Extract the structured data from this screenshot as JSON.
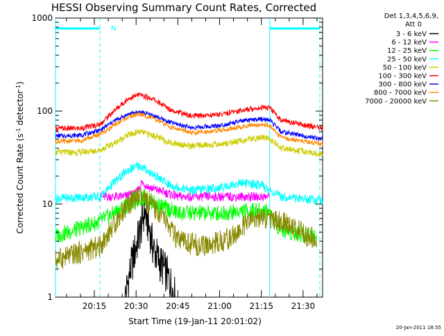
{
  "chart_data": {
    "type": "line",
    "title": "HESSI Observing Summary Count Rates, Corrected",
    "ylabel_main": "Corrected Count Rate (s",
    "ylabel_sup1": "-1",
    "ylabel_mid": " detector",
    "ylabel_sup2": "-1",
    "ylabel_end": ")",
    "xlabel": "Start Time (19-Jan-11 20:01:02)",
    "y_scale": "log",
    "ylim": [
      1,
      1000
    ],
    "xlim": [
      "20:01:02",
      "21:37:00"
    ],
    "y_ticks": [
      "1",
      "10",
      "100",
      "1000"
    ],
    "x_ticks": [
      "20:15",
      "20:30",
      "20:45",
      "21:00",
      "21:15",
      "21:30"
    ],
    "legend_header": [
      "Det 1,3,4,5,6,9,",
      "Att 0"
    ],
    "night_marker": "N",
    "timestamp": "20-Jan-2011 18:55",
    "grid": false,
    "legend_placement": "right",
    "series": [
      {
        "name": "3 - 6 keV",
        "color": "#000000",
        "x": [
          "20:26",
          "20:28",
          "20:30",
          "20:32",
          "20:33",
          "20:34",
          "20:35",
          "20:36",
          "20:38",
          "20:40",
          "20:42",
          "20:44"
        ],
        "values": [
          1.0,
          2.0,
          3.5,
          6.0,
          8.5,
          6.5,
          5.0,
          3.5,
          2.5,
          2.0,
          1.5,
          1.0
        ]
      },
      {
        "name": "6 - 12 keV",
        "color": "#ff00ff",
        "x": [
          "20:17",
          "20:25",
          "20:30",
          "20:32",
          "20:35",
          "20:45",
          "21:00",
          "21:10",
          "21:18"
        ],
        "values": [
          12,
          12,
          13,
          17,
          15,
          12,
          12,
          12,
          12
        ]
      },
      {
        "name": "12 - 25 keV",
        "color": "#00ff00",
        "x": [
          "20:01",
          "20:17",
          "20:25",
          "20:30",
          "20:33",
          "20:37",
          "20:45",
          "21:00",
          "21:10",
          "21:18",
          "21:20",
          "21:25",
          "21:35"
        ],
        "values": [
          4.5,
          6.5,
          9,
          11,
          12,
          10,
          8,
          8,
          8.5,
          8.5,
          6,
          5,
          4.5
        ]
      },
      {
        "name": "25 - 50 keV",
        "color": "#00ffff",
        "x": [
          "20:01",
          "20:17",
          "20:22",
          "20:27",
          "20:31",
          "20:35",
          "20:42",
          "20:50",
          "21:00",
          "21:08",
          "21:15",
          "21:18",
          "21:22",
          "21:37"
        ],
        "values": [
          11.5,
          12,
          17,
          23,
          26,
          22,
          16,
          14,
          15,
          17,
          16,
          14,
          12,
          11
        ]
      },
      {
        "name": "50 - 100 keV",
        "color": "#cccc00",
        "x": [
          "20:01",
          "20:10",
          "20:17",
          "20:22",
          "20:27",
          "20:31",
          "20:36",
          "20:42",
          "20:50",
          "21:00",
          "21:08",
          "21:15",
          "21:18",
          "21:22",
          "21:37"
        ],
        "values": [
          36,
          36,
          38,
          45,
          55,
          60,
          55,
          46,
          42,
          44,
          48,
          52,
          50,
          40,
          34
        ]
      },
      {
        "name": "100 - 300 keV",
        "color": "#ff0000",
        "x": [
          "20:01",
          "20:10",
          "20:17",
          "20:22",
          "20:27",
          "20:31",
          "20:36",
          "20:42",
          "20:50",
          "21:00",
          "21:08",
          "21:15",
          "21:18",
          "21:22",
          "21:37"
        ],
        "values": [
          65,
          65,
          72,
          100,
          135,
          150,
          135,
          105,
          88,
          92,
          102,
          110,
          108,
          80,
          65
        ]
      },
      {
        "name": "300 - 800 keV",
        "color": "#0000ff",
        "x": [
          "20:01",
          "20:10",
          "20:17",
          "20:22",
          "20:27",
          "20:31",
          "20:36",
          "20:42",
          "20:50",
          "21:00",
          "21:08",
          "21:15",
          "21:18",
          "21:22",
          "21:37"
        ],
        "values": [
          54,
          55,
          62,
          78,
          92,
          98,
          90,
          76,
          66,
          70,
          78,
          82,
          80,
          60,
          50
        ]
      },
      {
        "name": "800 - 7000 keV",
        "color": "#ff8800",
        "x": [
          "20:01",
          "20:10",
          "20:17",
          "20:22",
          "20:27",
          "20:31",
          "20:36",
          "20:42",
          "20:50",
          "21:00",
          "21:08",
          "21:15",
          "21:18",
          "21:22",
          "21:37"
        ],
        "values": [
          47,
          48,
          56,
          70,
          86,
          93,
          84,
          68,
          58,
          62,
          68,
          72,
          70,
          52,
          44
        ]
      },
      {
        "name": "7000 - 20000 keV",
        "color": "#888800",
        "x": [
          "20:01",
          "20:17",
          "20:22",
          "20:27",
          "20:31",
          "20:35",
          "20:40",
          "20:45",
          "20:55",
          "21:05",
          "21:12",
          "21:18",
          "21:25",
          "21:35"
        ],
        "values": [
          2.5,
          3.5,
          6,
          10,
          12,
          10,
          7,
          4,
          3.5,
          4.5,
          7,
          7,
          6,
          4
        ]
      }
    ],
    "attenuator_markers": {
      "color": "#00ffff",
      "solid_lines": [
        "20:01:02",
        "21:18"
      ],
      "dashed_lines": [
        "20:17",
        "21:36"
      ],
      "bars": [
        [
          "20:01:02",
          "20:17"
        ],
        [
          "21:18",
          "21:36"
        ]
      ]
    }
  }
}
